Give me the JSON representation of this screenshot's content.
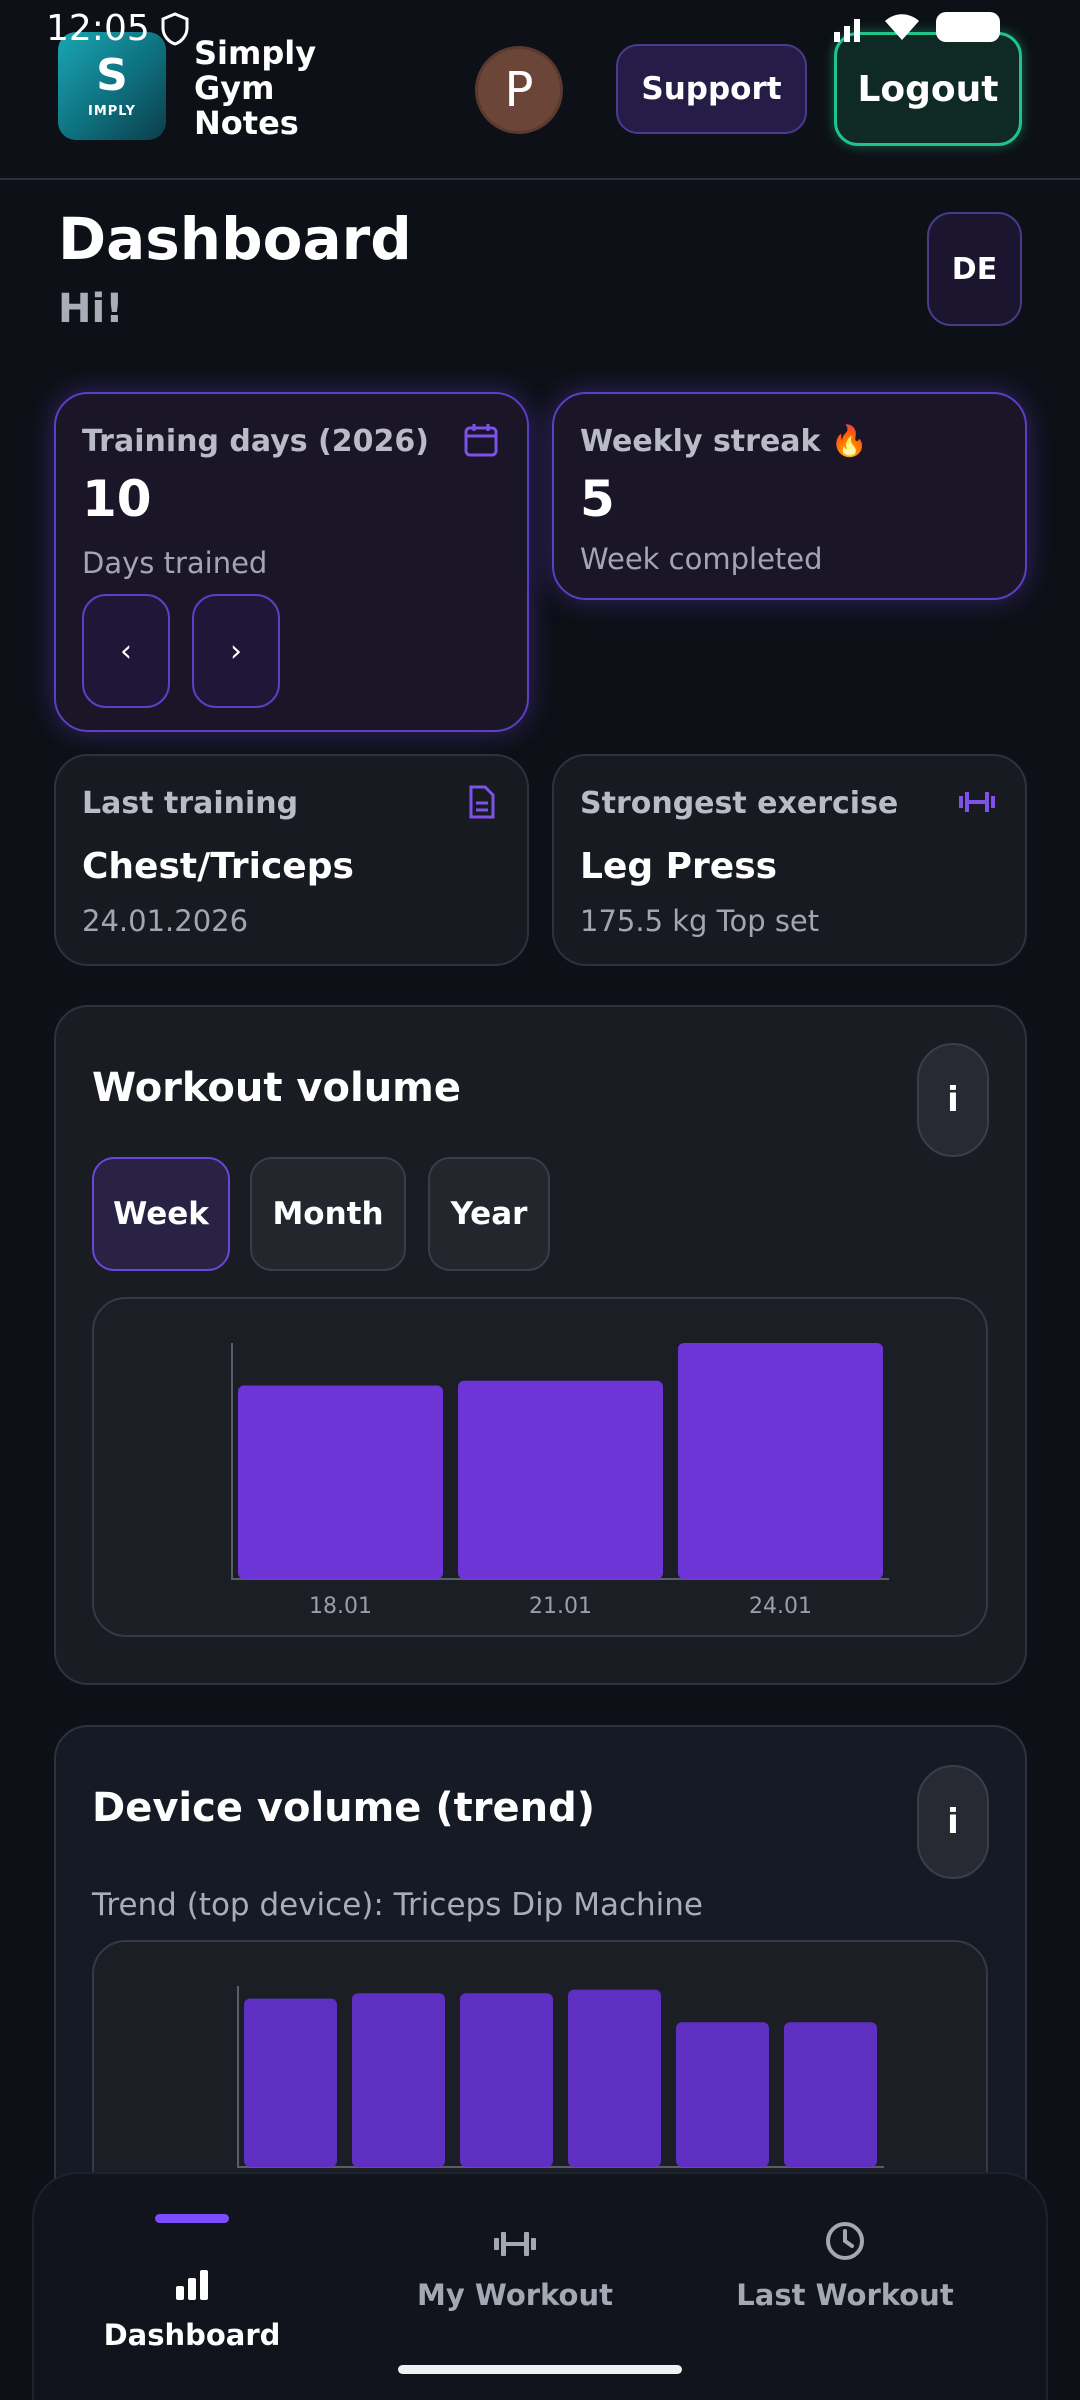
{
  "status_bar": {
    "time": "12:05"
  },
  "header": {
    "logo_mark": "S",
    "logo_text": "IMPLY",
    "brand": "Simply Gym Notes",
    "avatar_initial": "P",
    "support_label": "Support",
    "logout_label": "Logout"
  },
  "page": {
    "title": "Dashboard",
    "greeting": "Hi!",
    "language_label": "DE"
  },
  "stats": {
    "training_days": {
      "label": "Training days (2026)",
      "value": "10",
      "sub": "Days trained",
      "prev": "‹",
      "next": "›"
    },
    "weekly_streak": {
      "label": "Weekly streak 🔥",
      "value": "5",
      "sub": "Week completed"
    },
    "last_training": {
      "label": "Last training",
      "value": "Chest/Triceps",
      "sub": "24.01.2026"
    },
    "strongest_exercise": {
      "label": "Strongest exercise",
      "value": "Leg Press",
      "sub": "175.5 kg Top set"
    }
  },
  "workout_volume": {
    "title": "Workout volume",
    "info_label": "i",
    "ranges": [
      "Week",
      "Month",
      "Year"
    ],
    "active_range": "Week"
  },
  "device_volume": {
    "title": "Device volume (trend)",
    "info_label": "i",
    "subtitle": "Trend (top device): Triceps Dip Machine"
  },
  "chart_data": [
    {
      "type": "bar",
      "categories": [
        "18.01",
        "21.01",
        "24.01"
      ],
      "values": [
        82,
        84,
        100
      ],
      "ylim": [
        0,
        100
      ],
      "grid": false,
      "color": "#6d35d6"
    },
    {
      "type": "bar",
      "categories": [
        "",
        "",
        "",
        "",
        "",
        ""
      ],
      "values": [
        93,
        96,
        96,
        98,
        80,
        80
      ],
      "ylim": [
        0,
        100
      ],
      "grid": false,
      "color": "#5e2fc0"
    }
  ],
  "bottom_nav": {
    "items": [
      {
        "label": "Dashboard",
        "icon": "bar-chart-icon",
        "active": true
      },
      {
        "label": "My Workout",
        "icon": "dumbbell-icon",
        "active": false
      },
      {
        "label": "Last Workout",
        "icon": "clock-icon",
        "active": false
      }
    ],
    "active_color": "#7c4dff",
    "inactive_color": "#a4a8b3"
  }
}
